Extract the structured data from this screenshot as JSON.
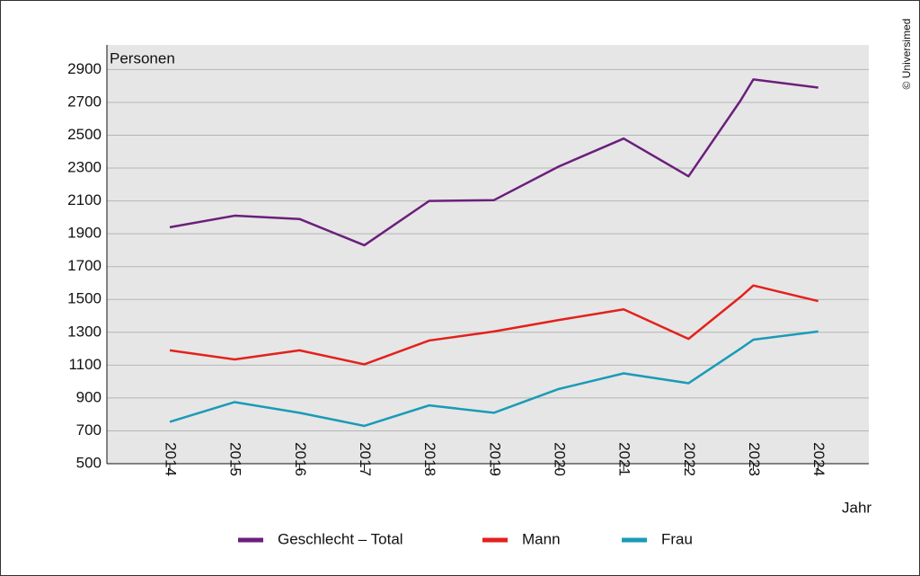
{
  "chart_data": {
    "type": "line",
    "y_label": "Personen",
    "x_label": "Jahr",
    "credit": "© Universimed",
    "x": [
      2014,
      2015,
      2016,
      2017,
      2018,
      2019,
      2020,
      2021,
      2022,
      2022.8,
      2023,
      2024
    ],
    "xticks": [
      2014,
      2015,
      2016,
      2017,
      2018,
      2019,
      2020,
      2021,
      2022,
      2023,
      2024
    ],
    "xlim": [
      2013.03,
      2024.78
    ],
    "ylim": [
      500,
      3050
    ],
    "yticks": [
      500,
      700,
      900,
      1100,
      1300,
      1500,
      1700,
      1900,
      2100,
      2300,
      2500,
      2700,
      2900
    ],
    "grid": true,
    "series": [
      {
        "name": "Geschlecht – Total",
        "color": "#6b1f7c",
        "values": [
          1940,
          2010,
          1990,
          1830,
          2100,
          2105,
          2310,
          2480,
          2250,
          2710,
          2840,
          2790
        ]
      },
      {
        "name": "Mann",
        "color": "#e3211c",
        "values": [
          1190,
          1135,
          1190,
          1105,
          1250,
          1305,
          1375,
          1440,
          1260,
          1515,
          1585,
          1490
        ]
      },
      {
        "name": "Frau",
        "color": "#1a9bb7",
        "values": [
          755,
          875,
          810,
          730,
          855,
          810,
          955,
          1050,
          990,
          1200,
          1255,
          1305
        ]
      }
    ]
  }
}
